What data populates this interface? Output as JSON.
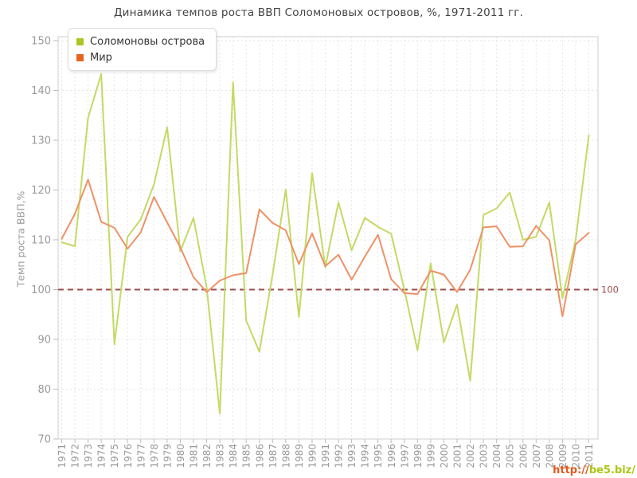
{
  "title": "Динамика темпов роста ВВП Соломоновых островов, %, 1971-2011 гг.",
  "y_axis": {
    "title": "Темп роста ВВП,%",
    "tick_labels": [
      "150",
      "140",
      "130",
      "120",
      "110",
      "100",
      "90",
      "80",
      "70"
    ]
  },
  "x_axis": {
    "tick_labels": [
      "1971",
      "1972",
      "1973",
      "1974",
      "1975",
      "1976",
      "1977",
      "1978",
      "1979",
      "1980",
      "1981",
      "1982",
      "1983",
      "1984",
      "1985",
      "1986",
      "1987",
      "1988",
      "1989",
      "1990",
      "1991",
      "1992",
      "1993",
      "1994",
      "1995",
      "1996",
      "1997",
      "1998",
      "1999",
      "2000",
      "2001",
      "2002",
      "2003",
      "2004",
      "2005",
      "2006",
      "2007",
      "2008",
      "2009",
      "2010",
      "2011"
    ]
  },
  "legend": {
    "items": [
      {
        "label": "Соломоновы острова",
        "swatch_color": "#a9c821"
      },
      {
        "label": "Мир",
        "swatch_color": "#e8641c"
      }
    ]
  },
  "reference_line": {
    "value": 100,
    "label": "100",
    "color": "#9e4f4f"
  },
  "watermark": {
    "protocol": "http://",
    "site": "be5.biz/"
  },
  "style": {
    "grid_color": "#e4e4e4",
    "border_color": "#cccccc",
    "tick_color": "#bbbbbb",
    "tick_label_color": "#999999"
  },
  "chart_data": {
    "type": "line",
    "title": "Динамика темпов роста ВВП Соломоновых островов, %, 1971-2011 гг.",
    "xlabel": "",
    "ylabel": "Темп роста ВВП,%",
    "x": [
      1971,
      1972,
      1973,
      1974,
      1975,
      1976,
      1977,
      1978,
      1979,
      1980,
      1981,
      1982,
      1983,
      1984,
      1985,
      1986,
      1987,
      1988,
      1989,
      1990,
      1991,
      1992,
      1993,
      1994,
      1995,
      1996,
      1997,
      1998,
      1999,
      2000,
      2001,
      2002,
      2003,
      2004,
      2005,
      2006,
      2007,
      2008,
      2009,
      2010,
      2011
    ],
    "ylim": [
      70,
      150
    ],
    "yticks": [
      70,
      80,
      90,
      100,
      110,
      120,
      130,
      140,
      150
    ],
    "grid": true,
    "legend_position": "top-left",
    "reference_value": 100,
    "series": [
      {
        "name": "Соломоновы острова",
        "color": "#c3da64",
        "values": [
          109.5,
          108.7,
          134.5,
          143.3,
          89.0,
          110.6,
          114.1,
          121.1,
          132.6,
          107.7,
          114.4,
          100.4,
          75.1,
          141.6,
          93.8,
          87.5,
          103.0,
          120.1,
          94.5,
          123.4,
          104.5,
          117.5,
          107.9,
          114.4,
          112.6,
          111.2,
          100.0,
          87.8,
          105.3,
          89.4,
          97.0,
          81.7,
          115.0,
          116.3,
          119.5,
          110.0,
          110.6,
          117.5,
          98.3,
          110.0,
          131.0
        ]
      },
      {
        "name": "Мир",
        "color": "#ef9166",
        "values": [
          110.2,
          115.2,
          122.1,
          113.6,
          112.4,
          108.2,
          111.5,
          118.6,
          113.5,
          108.5,
          102.5,
          99.5,
          101.8,
          102.9,
          103.3,
          116.1,
          113.4,
          111.9,
          105.1,
          111.3,
          104.7,
          107.0,
          102.0,
          106.6,
          111.0,
          102.1,
          99.3,
          99.1,
          103.8,
          103.0,
          99.5,
          104.0,
          112.5,
          112.7,
          108.6,
          108.7,
          112.8,
          109.9,
          94.6,
          109.1,
          111.4
        ]
      }
    ]
  }
}
